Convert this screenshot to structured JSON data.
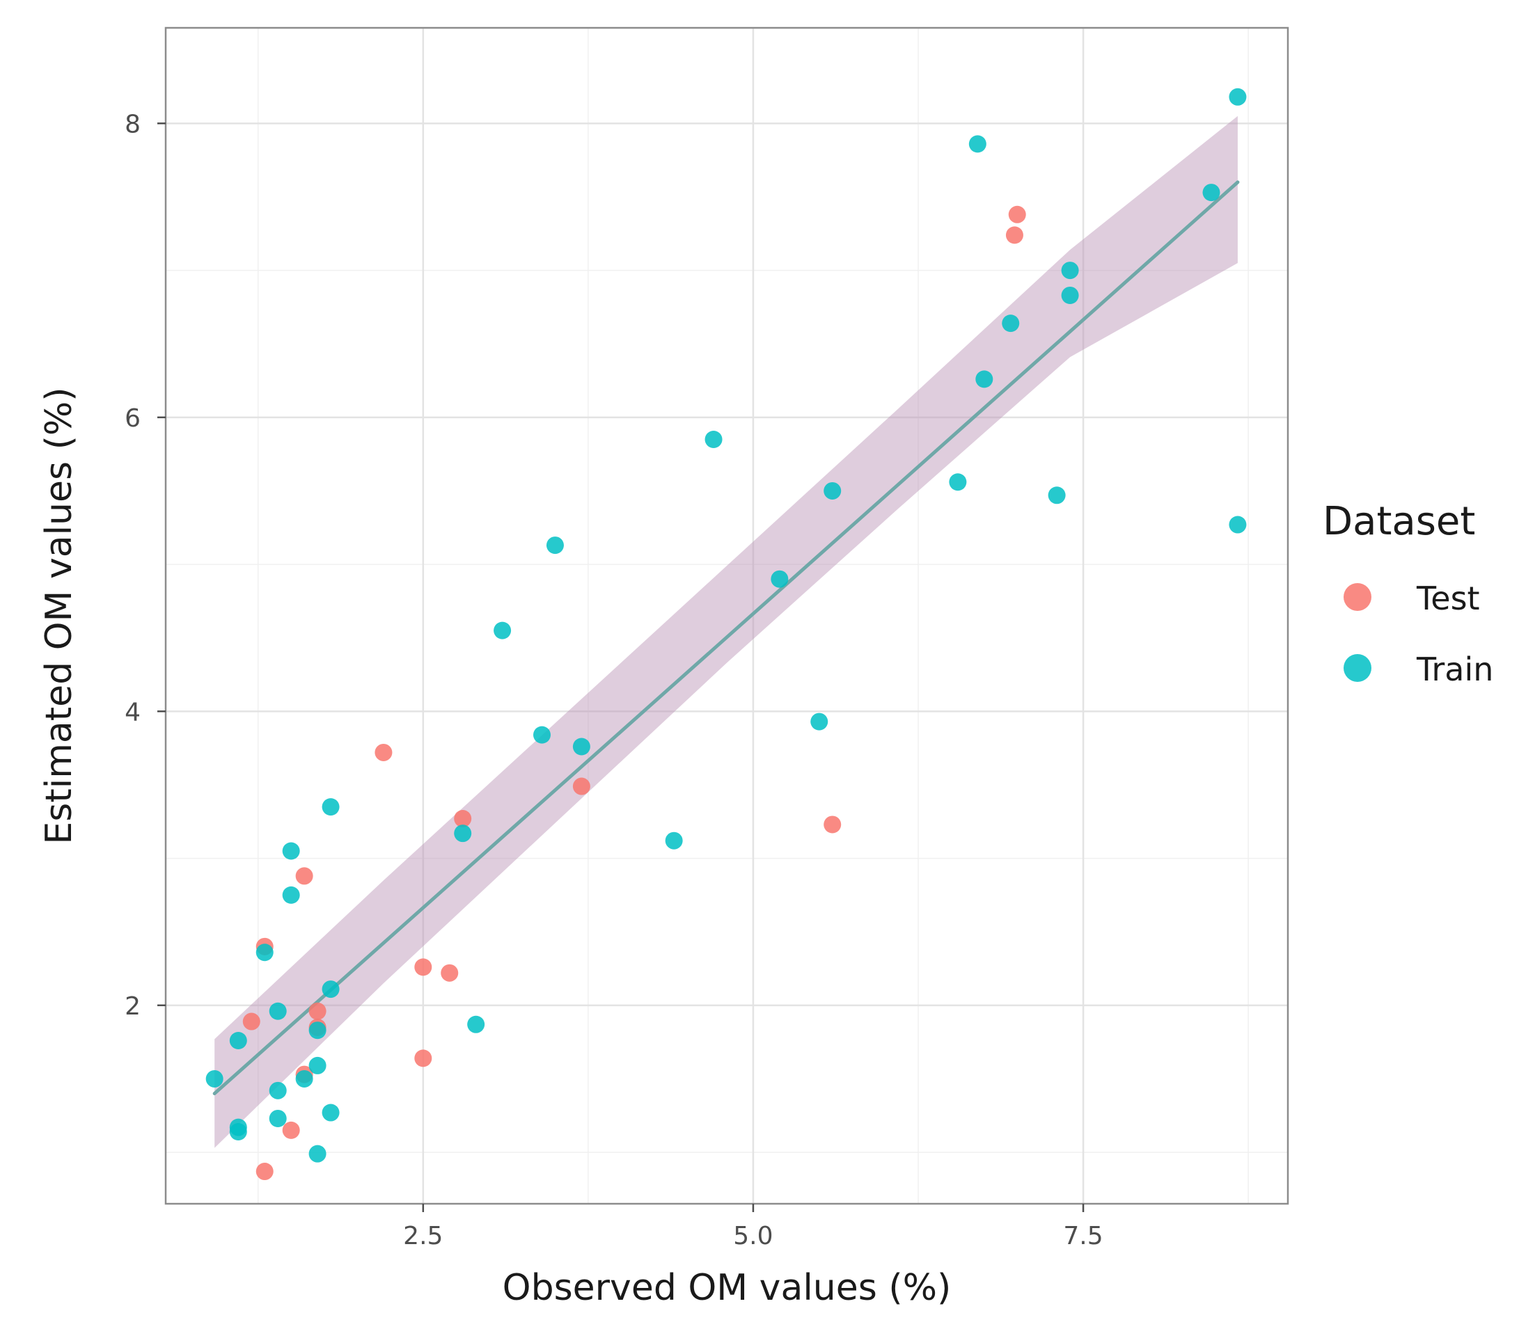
{
  "chart_data": {
    "type": "scatter",
    "title": "",
    "xlabel": "Observed OM values (%)",
    "ylabel": "Estimated OM values (%)",
    "xlim": [
      0.55,
      9.05
    ],
    "ylim": [
      0.65,
      8.65
    ],
    "x_ticks": [
      2.5,
      5.0,
      7.5
    ],
    "x_tick_labels": [
      "2.5",
      "5.0",
      "7.5"
    ],
    "y_ticks": [
      2,
      4,
      6,
      8
    ],
    "y_tick_labels": [
      "2",
      "4",
      "6",
      "8"
    ],
    "grid": true,
    "legend": {
      "title": "Dataset",
      "placement": "right",
      "entries": [
        {
          "name": "Test",
          "color": "#f8766d"
        },
        {
          "name": "Train",
          "color": "#00bfc4"
        }
      ]
    },
    "fit_line": {
      "x": [
        0.92,
        8.67
      ],
      "y": [
        1.4,
        7.6
      ],
      "color": "#6fa8a8",
      "band": {
        "x": [
          0.92,
          2.2,
          3.5,
          4.8,
          6.1,
          7.4,
          8.67
        ],
        "upper": [
          1.77,
          2.85,
          3.92,
          4.99,
          6.06,
          7.14,
          8.05
        ],
        "lower": [
          1.03,
          2.15,
          3.24,
          4.33,
          5.38,
          6.41,
          7.05
        ],
        "color": "#b891b4"
      }
    },
    "series": [
      {
        "name": "Test",
        "color": "#f8766d",
        "points": [
          {
            "x": 1.3,
            "y": 0.87
          },
          {
            "x": 1.3,
            "y": 2.4
          },
          {
            "x": 1.2,
            "y": 1.89
          },
          {
            "x": 1.6,
            "y": 2.88
          },
          {
            "x": 1.6,
            "y": 1.53
          },
          {
            "x": 1.5,
            "y": 1.15
          },
          {
            "x": 1.7,
            "y": 1.96
          },
          {
            "x": 1.7,
            "y": 1.85
          },
          {
            "x": 2.2,
            "y": 3.72
          },
          {
            "x": 2.5,
            "y": 2.26
          },
          {
            "x": 2.5,
            "y": 1.64
          },
          {
            "x": 2.7,
            "y": 2.22
          },
          {
            "x": 2.8,
            "y": 3.27
          },
          {
            "x": 3.7,
            "y": 3.49
          },
          {
            "x": 5.6,
            "y": 3.23
          },
          {
            "x": 7.0,
            "y": 7.38
          },
          {
            "x": 6.98,
            "y": 7.24
          }
        ]
      },
      {
        "name": "Train",
        "color": "#00bfc4",
        "points": [
          {
            "x": 0.92,
            "y": 1.5
          },
          {
            "x": 1.1,
            "y": 1.76
          },
          {
            "x": 1.1,
            "y": 1.17
          },
          {
            "x": 1.1,
            "y": 1.14
          },
          {
            "x": 1.3,
            "y": 2.36
          },
          {
            "x": 1.4,
            "y": 1.96
          },
          {
            "x": 1.4,
            "y": 1.42
          },
          {
            "x": 1.4,
            "y": 1.23
          },
          {
            "x": 1.5,
            "y": 3.05
          },
          {
            "x": 1.5,
            "y": 2.75
          },
          {
            "x": 1.6,
            "y": 1.5
          },
          {
            "x": 1.7,
            "y": 1.83
          },
          {
            "x": 1.7,
            "y": 1.59
          },
          {
            "x": 1.7,
            "y": 0.99
          },
          {
            "x": 1.8,
            "y": 3.35
          },
          {
            "x": 1.8,
            "y": 2.11
          },
          {
            "x": 1.8,
            "y": 1.27
          },
          {
            "x": 2.8,
            "y": 3.17
          },
          {
            "x": 2.9,
            "y": 1.87
          },
          {
            "x": 3.1,
            "y": 4.55
          },
          {
            "x": 3.4,
            "y": 3.84
          },
          {
            "x": 3.5,
            "y": 5.13
          },
          {
            "x": 3.7,
            "y": 3.76
          },
          {
            "x": 4.4,
            "y": 3.12
          },
          {
            "x": 4.7,
            "y": 5.85
          },
          {
            "x": 5.2,
            "y": 4.9
          },
          {
            "x": 5.5,
            "y": 3.93
          },
          {
            "x": 5.6,
            "y": 5.5
          },
          {
            "x": 6.55,
            "y": 5.56
          },
          {
            "x": 6.7,
            "y": 7.86
          },
          {
            "x": 6.75,
            "y": 6.26
          },
          {
            "x": 6.95,
            "y": 6.64
          },
          {
            "x": 7.3,
            "y": 5.47
          },
          {
            "x": 7.4,
            "y": 7.0
          },
          {
            "x": 7.4,
            "y": 6.83
          },
          {
            "x": 8.47,
            "y": 7.53
          },
          {
            "x": 8.67,
            "y": 8.18
          },
          {
            "x": 8.67,
            "y": 5.27
          }
        ]
      }
    ]
  }
}
